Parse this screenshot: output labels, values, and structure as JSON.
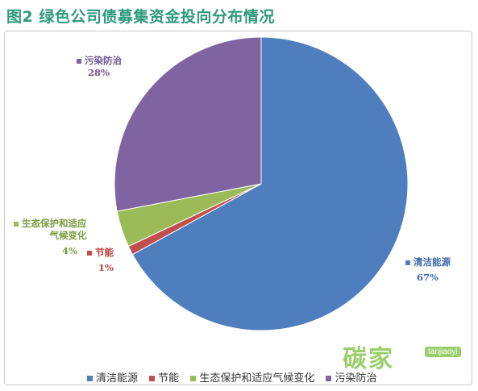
{
  "title": "图2  绿色公司债募集资金投向分布情况",
  "chart_data": {
    "type": "pie",
    "title": "图2  绿色公司债募集资金投向分布情况",
    "legend_position": "bottom",
    "slices": [
      {
        "name": "清洁能源",
        "value": 67,
        "label": "67%",
        "color": "#4f7ebe"
      },
      {
        "name": "节能",
        "value": 1,
        "label": "1%",
        "color": "#c0504d"
      },
      {
        "name": "生态保护和适应气候变化",
        "value": 4,
        "label": "4%",
        "color": "#9bbb59"
      },
      {
        "name": "污染防治",
        "value": 28,
        "label": "28%",
        "color": "#8064a2"
      }
    ]
  },
  "labels": {
    "clean_energy": {
      "line1": "清洁能源",
      "pct": "67%"
    },
    "energy_saving": {
      "line1": "节能",
      "pct": "1%"
    },
    "eco": {
      "line1": "生态保护和适应",
      "line2": "气候变化",
      "pct": "4%"
    },
    "pollution": {
      "line1": "污染防治",
      "pct": "28%"
    }
  },
  "legend": [
    "清洁能源",
    "节能",
    "生态保护和适应气候变化",
    "污染防治"
  ],
  "watermark": {
    "text": "碳家",
    "sub": "tanjiaoyi"
  }
}
